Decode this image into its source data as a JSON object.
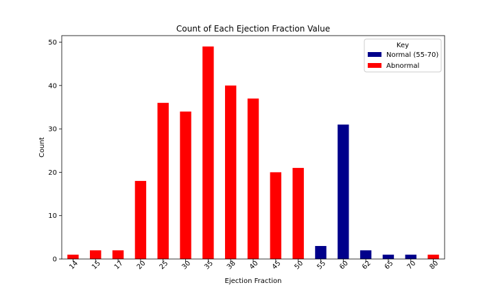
{
  "chart_data": {
    "type": "bar",
    "title": "Count of Each Ejection Fraction Value",
    "xlabel": "Ejection Fraction",
    "ylabel": "Count",
    "ylim": [
      0,
      51.5
    ],
    "yticks": [
      0,
      10,
      20,
      30,
      40,
      50
    ],
    "grid": false,
    "legend_position": "top-right",
    "legend_title": "Key",
    "series": [
      {
        "name": "Normal (55-70)",
        "color": "#00008b"
      },
      {
        "name": "Abnormal",
        "color": "#ff0000"
      }
    ],
    "categories": [
      "14",
      "15",
      "17",
      "20",
      "25",
      "30",
      "35",
      "38",
      "40",
      "45",
      "50",
      "55",
      "60",
      "62",
      "65",
      "70",
      "80"
    ],
    "values": [
      1,
      2,
      2,
      18,
      36,
      34,
      49,
      40,
      37,
      20,
      21,
      3,
      31,
      2,
      1,
      1,
      1
    ],
    "bar_series": [
      "Abnormal",
      "Abnormal",
      "Abnormal",
      "Abnormal",
      "Abnormal",
      "Abnormal",
      "Abnormal",
      "Abnormal",
      "Abnormal",
      "Abnormal",
      "Abnormal",
      "Normal (55-70)",
      "Normal (55-70)",
      "Normal (55-70)",
      "Normal (55-70)",
      "Normal (55-70)",
      "Abnormal"
    ]
  }
}
